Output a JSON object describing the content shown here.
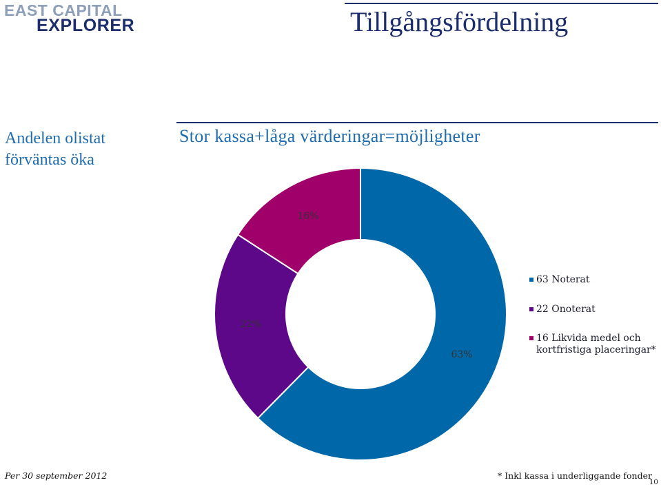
{
  "logo": {
    "line1": "EAST CAPITAL",
    "line2": "EXPLORER"
  },
  "page_title": "Tillgångsfördelning",
  "side_note": "Andelen olistat förväntas öka",
  "subtitle": "Stor kassa+låga värderingar=möjligheter",
  "chart_data": {
    "type": "pie",
    "donut": true,
    "categories": [
      "Noterat",
      "Onoterat",
      "Likvida medel och kortfristiga placeringar*"
    ],
    "values": [
      63,
      22,
      16
    ],
    "value_labels": [
      "63%",
      "22%",
      "16%"
    ],
    "colors": [
      "#0068a8",
      "#5c0889",
      "#a0006a"
    ],
    "legend_position": "right",
    "legend": [
      {
        "text": "63 Noterat",
        "color": "#0068a8"
      },
      {
        "text": "22 Onoterat",
        "color": "#5c0889"
      },
      {
        "text": "16 Likvida medel och kortfristiga placeringar*",
        "color": "#a0006a"
      }
    ]
  },
  "footer": {
    "date": "Per 30 september 2012",
    "note": "* Inkl kassa i underliggande fonder",
    "page_number": "10"
  }
}
